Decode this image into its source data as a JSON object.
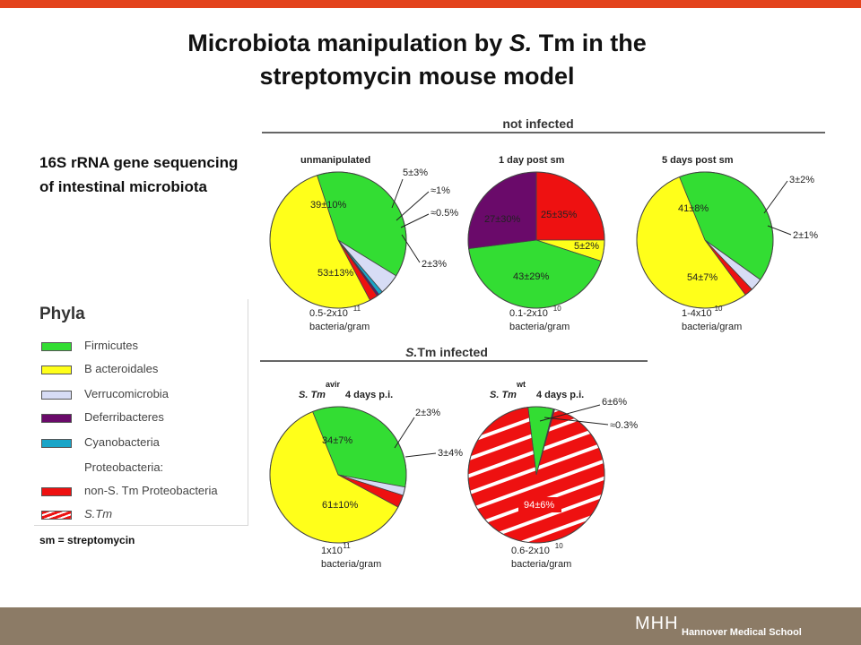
{
  "slide": {
    "title_line1_prefix": "Microbiota manipulation by ",
    "title_line1_italic": "S.",
    "title_line1_suffix": " Tm in the",
    "title_line2": "streptomycin mouse model",
    "subtitle": "16S rRNA gene sequencing of intestinal microbiota",
    "note": "sm = streptomycin",
    "footer_logo": "MHH",
    "footer_school": "Hannover Medical School"
  },
  "colors": {
    "top_bar": "#e3431c",
    "footer": "#8c7b66",
    "Firmicutes": "#33dd33",
    "Bacteroidales": "#ffff1a",
    "Verrucomicrobia": "#d7dcf5",
    "Deferribacteres": "#6a0a6a",
    "Cyanobacteria": "#1aa5c8",
    "Proteobacteria": "#ee1111",
    "STm": "#ee1111"
  },
  "legend": {
    "title": "Phyla",
    "items": [
      {
        "label": "Firmicutes",
        "color": "#33dd33"
      },
      {
        "label": "B acteroidales",
        "color": "#ffff1a"
      },
      {
        "label": "Verrucomicrobia",
        "color": "#d7dcf5"
      },
      {
        "label": "Deferribacteres",
        "color": "#6a0a6a"
      },
      {
        "label": "Cyanobacteria",
        "color": "#1aa5c8"
      },
      {
        "label": "Proteobacteria:",
        "color": null
      },
      {
        "label": "non-S. Tm Proteobacteria",
        "color": "#ee1111"
      },
      {
        "label": "S.Tm",
        "color": "striped"
      }
    ]
  },
  "groups": {
    "not_infected": "not infected",
    "infected": "S.Tm infected"
  },
  "chart_data": [
    {
      "type": "pie",
      "title": "unmanipulated",
      "caption_line1": "0.5-2x10",
      "caption_exp": "11",
      "caption_line2": "bacteria/gram",
      "slices": [
        {
          "phylum": "Firmicutes",
          "value": 39,
          "label": "39±10%"
        },
        {
          "phylum": "Verrucomicrobia",
          "value": 5,
          "label": "5±3%"
        },
        {
          "phylum": "Cyanobacteria",
          "value": 1,
          "label": "≈1%"
        },
        {
          "phylum": "Deferribacteres",
          "value": 0.5,
          "label": "≈0.5%"
        },
        {
          "phylum": "Proteobacteria",
          "value": 2,
          "label": "2±3%"
        },
        {
          "phylum": "Bacteroidales",
          "value": 53,
          "label": "53±13%"
        }
      ]
    },
    {
      "type": "pie",
      "title": "1  day post sm",
      "caption_line1": "0.1-2x10",
      "caption_exp": "10",
      "caption_line2": "bacteria/gram",
      "slices": [
        {
          "phylum": "Proteobacteria",
          "value": 25,
          "label": "25±35%"
        },
        {
          "phylum": "Bacteroidales",
          "value": 5,
          "label": "5±2%"
        },
        {
          "phylum": "Firmicutes",
          "value": 43,
          "label": "43±29%"
        },
        {
          "phylum": "Deferribacteres",
          "value": 27,
          "label": "27±30%"
        }
      ]
    },
    {
      "type": "pie",
      "title": "5 days post sm",
      "caption_line1": "1-4x10",
      "caption_exp": "10",
      "caption_line2": "bacteria/gram",
      "slices": [
        {
          "phylum": "Firmicutes",
          "value": 41,
          "label": "41±8%"
        },
        {
          "phylum": "Verrucomicrobia",
          "value": 3,
          "label": "3±2%"
        },
        {
          "phylum": "Proteobacteria",
          "value": 2,
          "label": "2±1%"
        },
        {
          "phylum": "Bacteroidales",
          "value": 54,
          "label": "54±7%"
        }
      ]
    },
    {
      "type": "pie",
      "title_prefix": "S. Tm",
      "title_sup": "avir",
      "title_suffix": "4 days p.i.",
      "caption_line1": "1x10",
      "caption_exp": "11",
      "caption_line2": "bacteria/gram",
      "slices": [
        {
          "phylum": "Firmicutes",
          "value": 34,
          "label": "34±7%"
        },
        {
          "phylum": "Verrucomicrobia",
          "value": 2,
          "label": "2±3%"
        },
        {
          "phylum": "Proteobacteria",
          "value": 3,
          "label": "3±4%"
        },
        {
          "phylum": "Bacteroidales",
          "value": 61,
          "label": "61±10%"
        }
      ]
    },
    {
      "type": "pie",
      "title_prefix": "S. Tm",
      "title_sup": "wt",
      "title_suffix": "4 days p.i.",
      "caption_line1": "0.6-2x10",
      "caption_exp": "10",
      "caption_line2": "bacteria/gram",
      "slices": [
        {
          "phylum": "Firmicutes",
          "value": 6,
          "label": "6±6%"
        },
        {
          "phylum": "Deferribacteres",
          "value": 0.3,
          "label": "≈0.3%"
        },
        {
          "phylum": "STm",
          "value": 93.7,
          "label": "94±6%"
        }
      ]
    }
  ]
}
